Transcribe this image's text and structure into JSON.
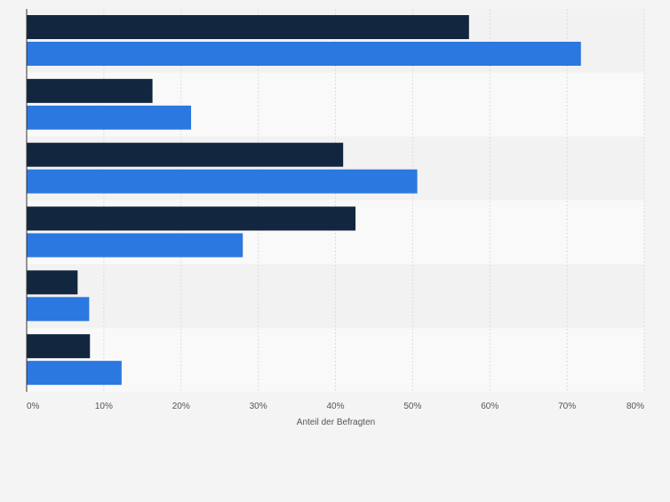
{
  "chart_data": {
    "type": "bar",
    "orientation": "horizontal",
    "title": "",
    "xlabel": "Anteil der Befragten",
    "ylabel": "",
    "xlim": [
      0,
      80
    ],
    "ticks": [
      "0%",
      "10%",
      "20%",
      "30%",
      "40%",
      "50%",
      "60%",
      "70%",
      "80%"
    ],
    "tick_values": [
      0,
      10,
      20,
      30,
      40,
      50,
      60,
      70,
      80
    ],
    "categories": [
      "",
      "",
      "",
      "",
      "",
      ""
    ],
    "series": [
      {
        "name": "",
        "color": "#12263f",
        "values": [
          57.3,
          16.3,
          41.0,
          42.6,
          6.6,
          8.2
        ]
      },
      {
        "name": "",
        "color": "#2b78e0",
        "values": [
          71.8,
          21.3,
          50.6,
          28.0,
          8.1,
          12.3
        ]
      }
    ],
    "grid": true,
    "legend": "none"
  }
}
